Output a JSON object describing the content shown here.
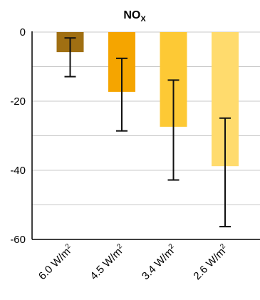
{
  "chart_data": {
    "type": "bar",
    "title_main": "NO",
    "title_sub": "X",
    "categories": [
      {
        "value": "6.0 W/m",
        "sup": "2"
      },
      {
        "value": "4.5 W/m",
        "sup": "2"
      },
      {
        "value": "3.4 W/m",
        "sup": "2"
      },
      {
        "value": "2.6 W/m",
        "sup": "2"
      }
    ],
    "values": [
      -5.8,
      -17.3,
      -27.4,
      -38.8
    ],
    "err_low": [
      -12.9,
      -28.6,
      -42.8,
      -56.3
    ],
    "err_high": [
      -1.7,
      -7.6,
      -13.9,
      -24.9
    ],
    "colors": [
      "#a06f12",
      "#f5a500",
      "#fdc935",
      "#ffdb6d"
    ],
    "ylim": [
      -60,
      0
    ],
    "yticks": [
      0,
      -20,
      -40,
      -60
    ],
    "ytick_labels": [
      "0",
      "-20",
      "-40",
      "-60"
    ],
    "grid_values": [
      -10,
      -30,
      -50
    ],
    "grid": true,
    "xlabel": "",
    "ylabel": ""
  }
}
